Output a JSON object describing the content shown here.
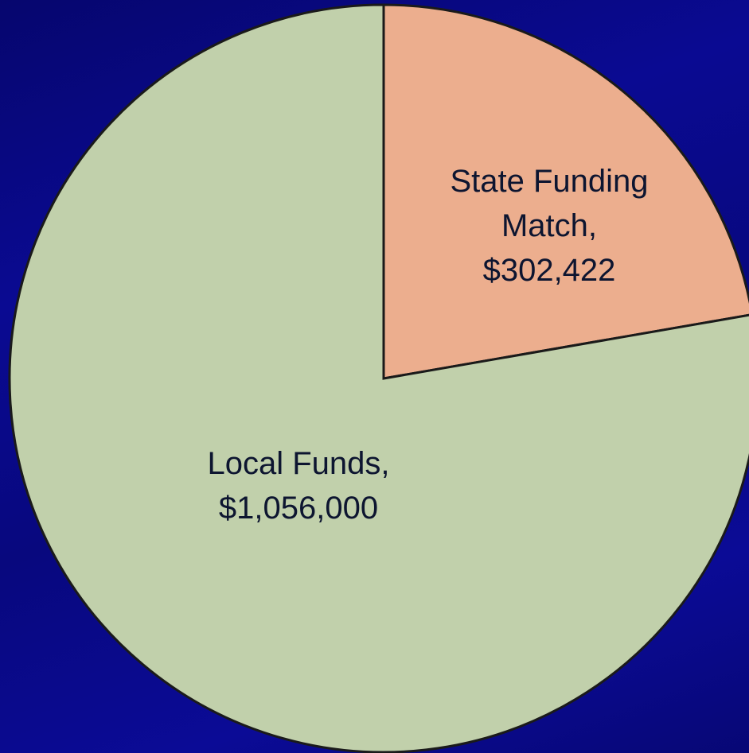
{
  "chart_data": {
    "type": "pie",
    "categories": [
      "State Funding Match,",
      "Local Funds,"
    ],
    "values": [
      302422,
      1056000
    ],
    "value_labels": [
      "$302,422",
      "$1,056,000"
    ],
    "colors": [
      "#ecae8e",
      "#c1d0ab"
    ]
  }
}
